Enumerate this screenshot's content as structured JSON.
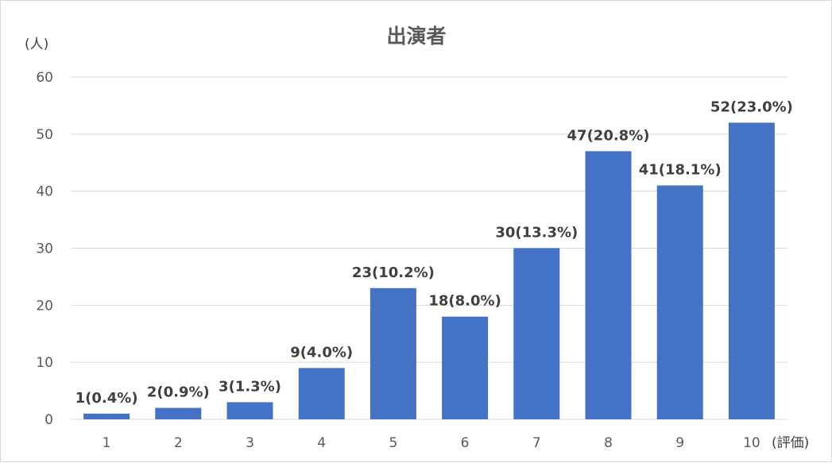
{
  "chart_data": {
    "type": "bar",
    "title": "出演者",
    "ylabel": "(人)",
    "xlabel": "(評価)",
    "ylim": [
      0,
      60
    ],
    "yticks": [
      0,
      10,
      20,
      30,
      40,
      50,
      60
    ],
    "categories": [
      "1",
      "2",
      "3",
      "4",
      "5",
      "6",
      "7",
      "8",
      "9",
      "10"
    ],
    "values": [
      1,
      2,
      3,
      9,
      23,
      18,
      30,
      47,
      41,
      52
    ],
    "data_labels": [
      "1(0.4%)",
      "2(0.9%)",
      "3(1.3%)",
      "9(4.0%)",
      "23(10.2%)",
      "18(8.0%)",
      "30(13.3%)",
      "47(20.8%)",
      "41(18.1%)",
      "52(23.0%)"
    ],
    "grid": true,
    "bar_color": "#4472c4"
  }
}
